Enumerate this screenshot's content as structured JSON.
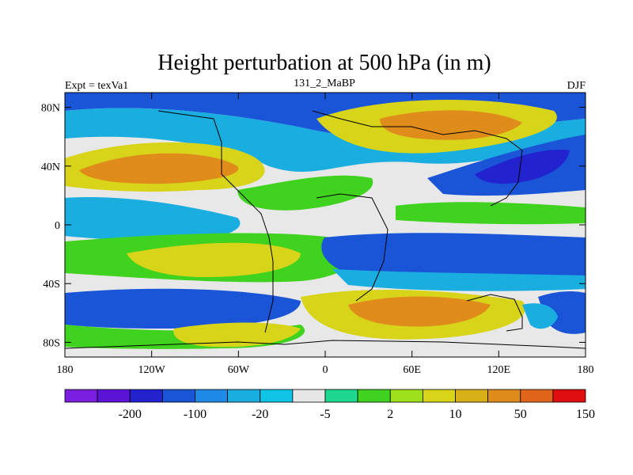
{
  "chart_data": {
    "type": "heatmap",
    "title": "Height perturbation at 500 hPa (in m)",
    "left_label": "Expt = texVa1",
    "center_label": "131_2_MaBP",
    "right_label": "DJF",
    "x_ticks": [
      {
        "value": -180,
        "label": "180"
      },
      {
        "value": -120,
        "label": "120W"
      },
      {
        "value": -60,
        "label": "60W"
      },
      {
        "value": 0,
        "label": "0"
      },
      {
        "value": 60,
        "label": "60E"
      },
      {
        "value": 120,
        "label": "120E"
      },
      {
        "value": 180,
        "label": "180"
      }
    ],
    "y_ticks": [
      {
        "value": 80,
        "label": "80N"
      },
      {
        "value": 40,
        "label": "40N"
      },
      {
        "value": 0,
        "label": "0"
      },
      {
        "value": -40,
        "label": "40S"
      },
      {
        "value": -80,
        "label": "80S"
      }
    ],
    "xlim": [
      -180,
      180
    ],
    "ylim": [
      -90,
      90
    ],
    "colorbar": {
      "colors": [
        "#7a1fe0",
        "#5a14d6",
        "#2222cf",
        "#1a55d8",
        "#1e8ae6",
        "#1aaee0",
        "#10c4e6",
        "#e6e6e6",
        "#1ed890",
        "#3fd21e",
        "#9fe01c",
        "#d8d41a",
        "#d8b01a",
        "#e08c1a",
        "#e0641a",
        "#e00e0e"
      ],
      "labels": [
        {
          "after_index": 1,
          "text": "-200"
        },
        {
          "after_index": 3,
          "text": "-100"
        },
        {
          "after_index": 5,
          "text": "-20"
        },
        {
          "after_index": 7,
          "text": "-5"
        },
        {
          "after_index": 9,
          "text": "2"
        },
        {
          "after_index": 11,
          "text": "10"
        },
        {
          "after_index": 13,
          "text": "50"
        },
        {
          "after_index": 15,
          "text": "150"
        }
      ]
    }
  }
}
